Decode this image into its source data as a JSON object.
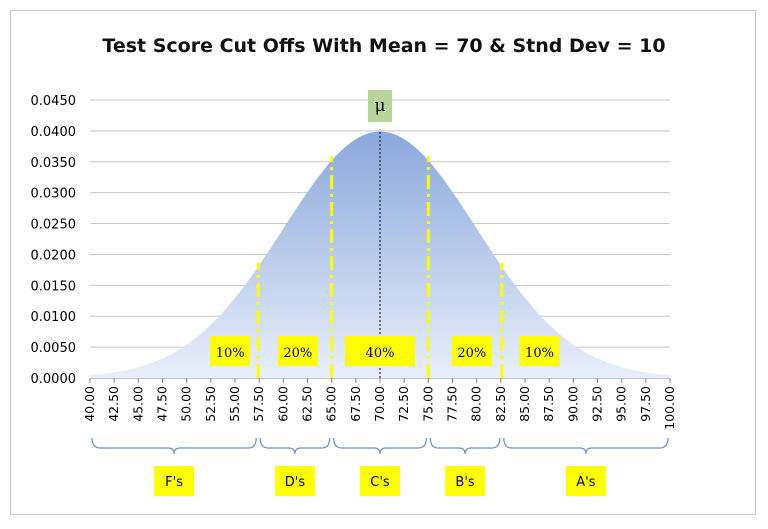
{
  "chart_data": {
    "type": "area",
    "title": "Test Score Cut Offs With Mean = 70 & Stnd Dev = 10",
    "mean": 70,
    "sd": 10,
    "x_ticks": [
      "40.00",
      "42.50",
      "45.00",
      "47.50",
      "50.00",
      "52.50",
      "55.00",
      "57.50",
      "60.00",
      "62.50",
      "65.00",
      "67.50",
      "70.00",
      "72.50",
      "75.00",
      "77.50",
      "80.00",
      "82.50",
      "85.00",
      "87.50",
      "90.00",
      "92.50",
      "95.00",
      "97.50",
      "100.00"
    ],
    "y_ticks": [
      "0.0000",
      "0.0050",
      "0.0100",
      "0.0150",
      "0.0200",
      "0.0250",
      "0.0300",
      "0.0350",
      "0.0400",
      "0.0450"
    ],
    "xlim": [
      40,
      100
    ],
    "ylim": [
      0,
      0.045
    ],
    "grid": true,
    "cutoffs": [
      57.4,
      65.0,
      75.0,
      82.6
    ],
    "mean_marker": "μ",
    "percent_labels": [
      {
        "text": "10%",
        "x": 54.5
      },
      {
        "text": "20%",
        "x": 61.5
      },
      {
        "text": "40%",
        "x": 70
      },
      {
        "text": "20%",
        "x": 79.5
      },
      {
        "text": "10%",
        "x": 86.5
      }
    ],
    "grades": [
      {
        "label": "F's",
        "from": 40,
        "to": 57.4
      },
      {
        "label": "D's",
        "from": 57.4,
        "to": 65.0
      },
      {
        "label": "C's",
        "from": 65.0,
        "to": 75.0
      },
      {
        "label": "B's",
        "from": 75.0,
        "to": 82.6
      },
      {
        "label": "A's",
        "from": 82.6,
        "to": 100
      }
    ],
    "colors": {
      "fill_top": "#8aa8dc",
      "fill_bottom": "#e9effa",
      "cutoff_line": "#ffff00",
      "label_box": "#ffff00",
      "mu_box": "#b8d49a",
      "grid": "#c8c8c8",
      "bracket": "#6c8fc7"
    }
  }
}
